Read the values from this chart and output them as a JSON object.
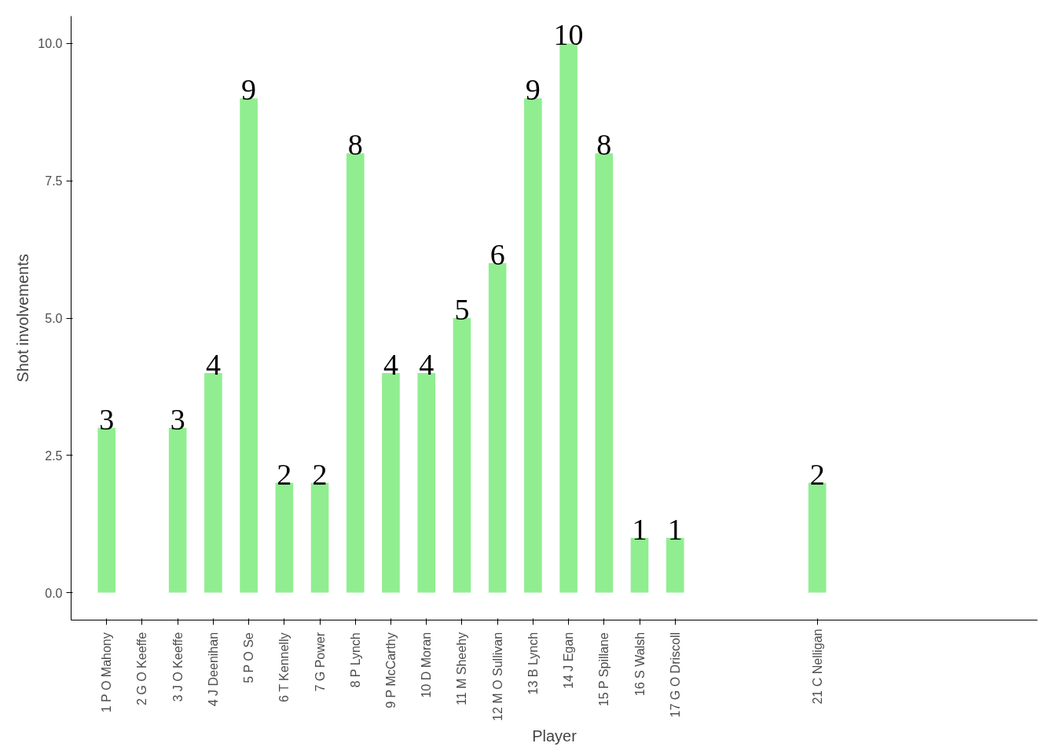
{
  "chart_data": {
    "type": "bar",
    "xlabel": "Player",
    "ylabel": "Shot involvements",
    "categories": [
      "1  P O Mahony",
      "2  G O Keeffe",
      "3  J O Keeffe",
      "4  J Deenihan",
      "5  P O Se",
      "6  T Kennelly",
      "7  G Power",
      "8  P Lynch",
      "9  P McCarthy",
      "10  D Moran",
      "11  M Sheehy",
      "12  M O Sullivan",
      "13  B Lynch",
      "14  J Egan",
      "15  P Spillane",
      "16  S Walsh",
      "17  G O Driscoll",
      null,
      null,
      null,
      "21 C Nelligan",
      null,
      null,
      null,
      null,
      null
    ],
    "values": [
      3,
      null,
      3,
      4,
      9,
      2,
      2,
      8,
      4,
      4,
      5,
      6,
      9,
      10,
      8,
      1,
      1,
      null,
      null,
      null,
      2,
      null,
      null,
      null,
      null,
      null
    ],
    "color": "#90ee90",
    "data_labels": true,
    "grid": false,
    "ylim": [
      -0.5,
      10.5
    ],
    "yticks": [
      {
        "value": 0,
        "label": "0.0"
      },
      {
        "value": 2.5,
        "label": "2.5"
      },
      {
        "value": 5,
        "label": "5.0"
      },
      {
        "value": 7.5,
        "label": "7.5"
      },
      {
        "value": 10,
        "label": "10.0"
      }
    ]
  }
}
